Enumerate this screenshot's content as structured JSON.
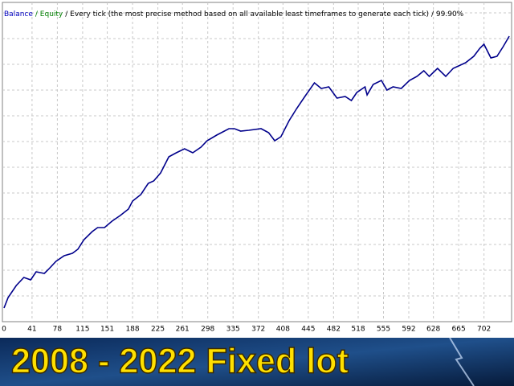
{
  "chart_data": {
    "type": "line",
    "legend_text": [
      "Balance",
      "/ Equity",
      "/ Every tick (the most precise method based on all available least timeframes to generate each tick)",
      "/ 99.90%"
    ],
    "legend_colors": [
      "#0000c0",
      "#008000",
      "#000000",
      "#000000"
    ],
    "banner": "2008 - 2022 Fixed lot",
    "series": [
      {
        "name": "Balance",
        "color": "#00008b",
        "x": [
          0,
          6,
          18,
          29,
          39,
          47,
          59,
          65,
          76,
          88,
          100,
          108,
          117,
          129,
          137,
          147,
          158,
          170,
          182,
          188,
          200,
          211,
          219,
          229,
          241,
          252,
          264,
          276,
          288,
          297,
          311,
          329,
          337,
          346,
          358,
          376,
          387,
          396,
          405,
          417,
          428,
          440,
          454,
          464,
          475,
          487,
          499,
          508,
          516,
          528,
          531,
          540,
          552,
          560,
          569,
          581,
          593,
          604,
          614,
          622,
          634,
          646,
          657,
          675,
          687,
          696,
          702,
          712,
          721,
          730,
          739
        ],
        "values": [
          17,
          30,
          45,
          55,
          52,
          62,
          60,
          65,
          75,
          82,
          85,
          90,
          102,
          112,
          117,
          117,
          125,
          132,
          140,
          150,
          158,
          172,
          175,
          185,
          205,
          210,
          215,
          210,
          217,
          225,
          232,
          240,
          240,
          237,
          238,
          240,
          235,
          225,
          230,
          250,
          265,
          280,
          297,
          290,
          292,
          278,
          280,
          275,
          285,
          292,
          282,
          295,
          300,
          288,
          292,
          290,
          300,
          305,
          312,
          305,
          315,
          305,
          315,
          322,
          330,
          340,
          345,
          328,
          330,
          342,
          355
        ]
      }
    ],
    "xlim": [
      0,
      740
    ],
    "ylim": [
      0,
      397
    ],
    "xticks": [
      0,
      41,
      78,
      115,
      151,
      188,
      225,
      261,
      298,
      335,
      372,
      408,
      445,
      482,
      518,
      555,
      592,
      628,
      665,
      702
    ],
    "grid": true
  }
}
